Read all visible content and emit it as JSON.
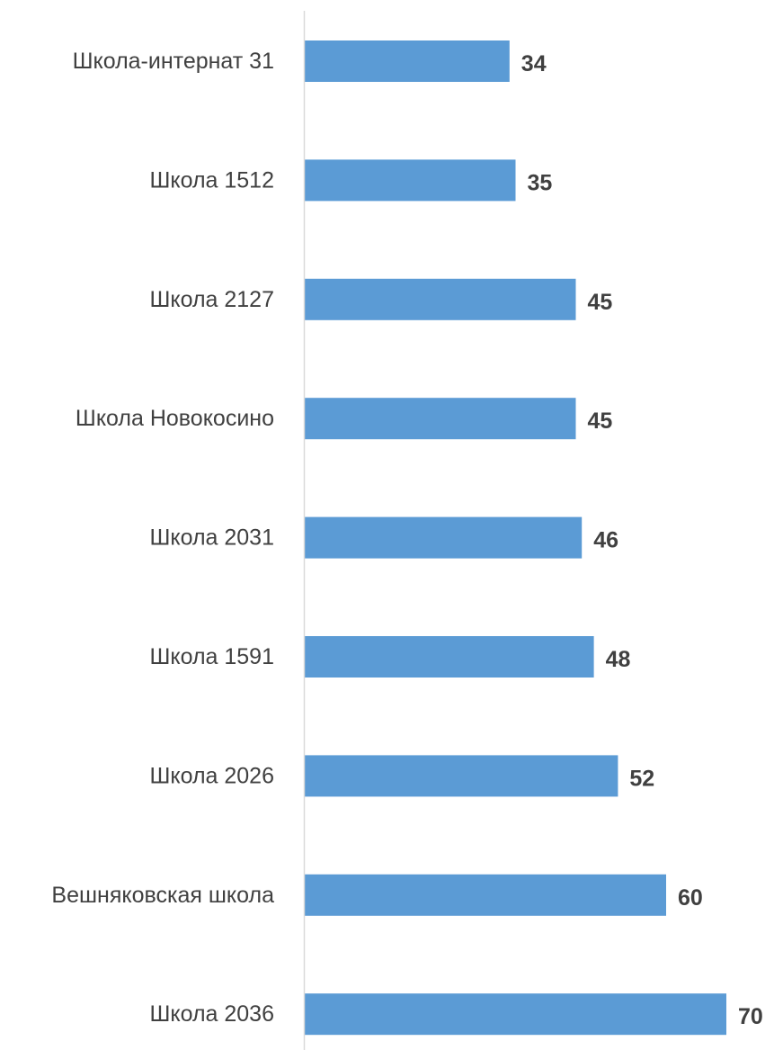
{
  "chart_data": {
    "type": "bar",
    "orientation": "horizontal",
    "categories": [
      "Школа-интернат 31",
      "Школа 1512",
      "Школа 2127",
      "Школа Новокосино",
      "Школа 2031",
      "Школа 1591",
      "Школа 2026",
      "Вешняковская школа",
      "Школа 2036"
    ],
    "values": [
      34,
      35,
      45,
      45,
      46,
      48,
      52,
      60,
      70
    ],
    "title": "",
    "xlabel": "",
    "ylabel": "",
    "xlim": [
      0,
      70
    ],
    "grid": false,
    "legend": "none",
    "data_labels": true,
    "colors": {
      "bar": "#5b9bd5",
      "axis": "#d9d9d9",
      "text": "#404040"
    }
  }
}
